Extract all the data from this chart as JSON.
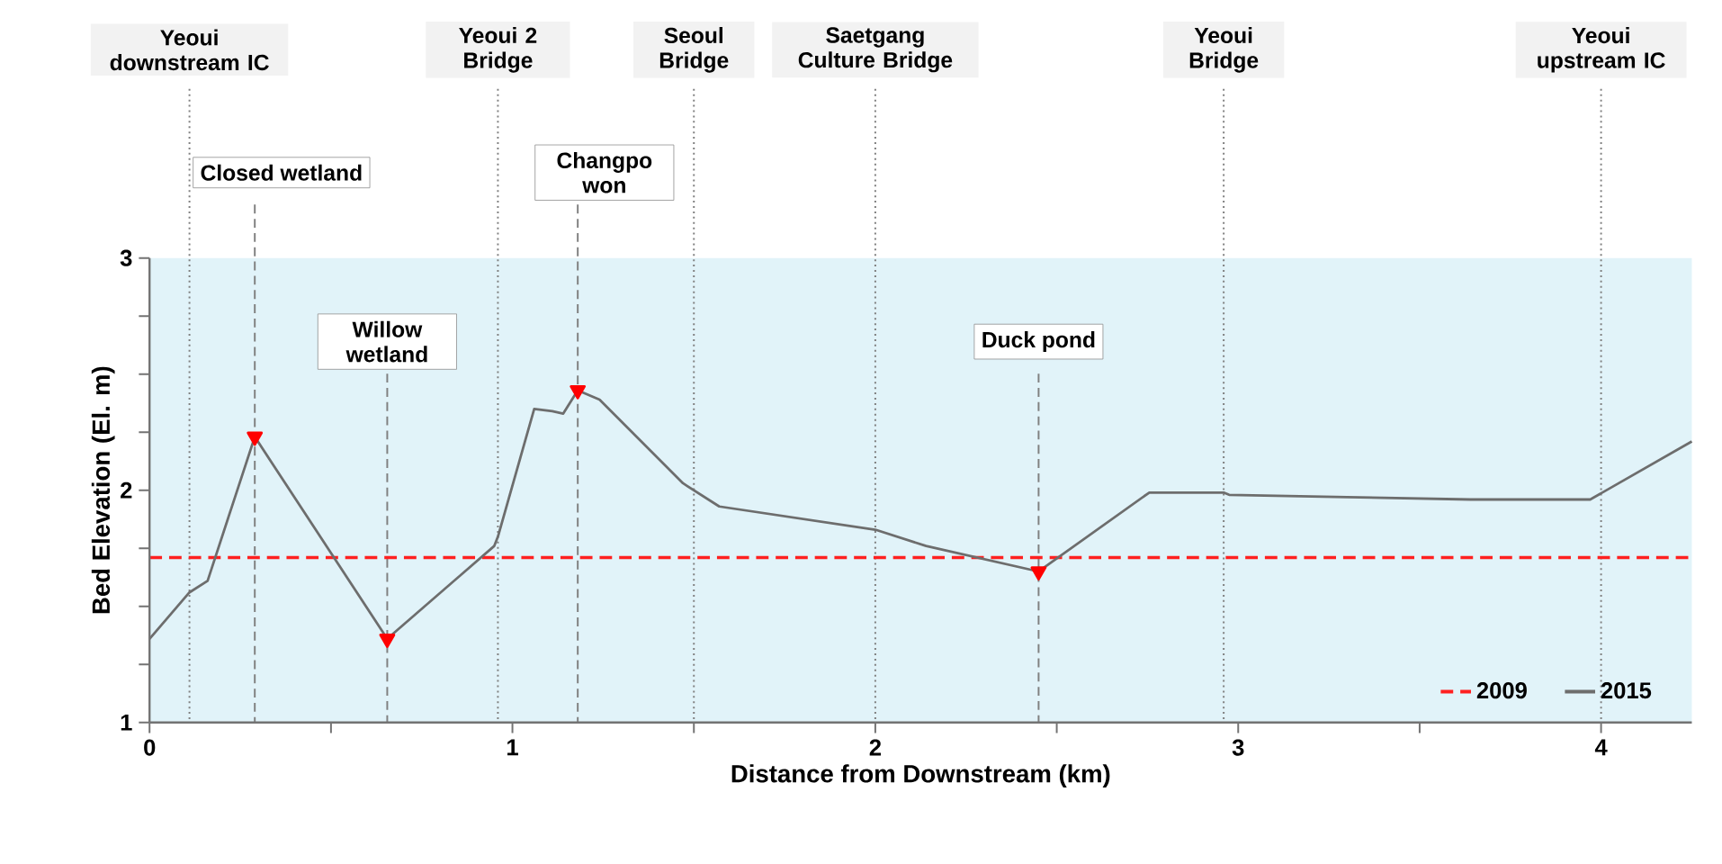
{
  "chart_data": {
    "type": "line",
    "xlabel": "Distance from Downstream (km)",
    "ylabel": "Bed Elevation (El. m)",
    "xlim": [
      0,
      4.25
    ],
    "ylim": [
      1,
      3
    ],
    "xticks": [
      0,
      {
        "value": 0.5,
        "label": null
      },
      1,
      {
        "value": 1.5,
        "label": null
      },
      2,
      {
        "value": 2.5,
        "label": null
      },
      3,
      {
        "value": 3.5,
        "label": null
      },
      4
    ],
    "yticks": [
      1,
      {
        "value": 1.25,
        "label": null
      },
      {
        "value": 1.5,
        "label": null
      },
      {
        "value": 1.75,
        "label": null
      },
      2,
      {
        "value": 2.25,
        "label": null
      },
      {
        "value": 2.5,
        "label": null
      },
      {
        "value": 2.75,
        "label": null
      },
      3
    ],
    "series": [
      {
        "name": "2009",
        "color": "#ff2020",
        "line_style": "dashed",
        "x": [
          0,
          4.25
        ],
        "values": [
          1.71,
          1.71
        ]
      },
      {
        "type": "scatter",
        "color": "#ff0000",
        "marker": "triangle",
        "x": [
          0.29,
          0.655,
          1.18,
          2.45
        ],
        "values": [
          2.23,
          1.36,
          2.43,
          1.65
        ]
      },
      {
        "name": "2015",
        "color": "#6d6d6d",
        "line_style": "solid",
        "x": [
          0,
          0.11,
          0.16,
          0.29,
          0.655,
          0.95,
          0.96,
          1.06,
          1.11,
          1.14,
          1.18,
          1.24,
          1.47,
          1.57,
          2.0,
          2.14,
          2.45,
          2.755,
          2.96,
          2.975,
          3.3,
          3.64,
          3.97,
          4.25
        ],
        "values": [
          1.36,
          1.56,
          1.61,
          2.23,
          1.36,
          1.76,
          1.8,
          2.35,
          2.34,
          2.33,
          2.43,
          2.39,
          2.03,
          1.93,
          1.83,
          1.76,
          1.65,
          1.99,
          1.99,
          1.98,
          1.97,
          1.96,
          1.96,
          2.21
        ]
      }
    ],
    "legend": "bottom right",
    "bands": [
      {
        "axis": "y",
        "from": 1,
        "to": 3,
        "color": "#e1f3f9"
      }
    ],
    "ref_lines": [
      {
        "axis": "x",
        "value": 0.11,
        "label": "Yeoui downstream IC",
        "line_style": "dotted"
      },
      {
        "axis": "x",
        "value": 0.96,
        "label": "Yeoui 2 Bridge",
        "line_style": "dotted"
      },
      {
        "axis": "x",
        "value": 1.5,
        "label": "Seoul Bridge",
        "line_style": "dotted"
      },
      {
        "axis": "x",
        "value": 2.0,
        "label": "Saetgang Culture Bridge",
        "line_style": "dotted"
      },
      {
        "axis": "x",
        "value": 2.96,
        "label": "Yeoui Bridge",
        "line_style": "dotted"
      },
      {
        "axis": "x",
        "value": 4.0,
        "label": "Yeoui upstream IC",
        "line_style": "dotted"
      },
      {
        "axis": "x",
        "value": 0.29,
        "label": "Closed wetland",
        "line_style": "dashed"
      },
      {
        "axis": "x",
        "value": 0.655,
        "label": "Willow wetland",
        "line_style": "dashed"
      },
      {
        "axis": "x",
        "value": 1.18,
        "label": "Changpo won",
        "line_style": "dashed"
      },
      {
        "axis": "x",
        "value": 2.45,
        "label": "Duck pond",
        "line_style": "dashed"
      }
    ]
  }
}
